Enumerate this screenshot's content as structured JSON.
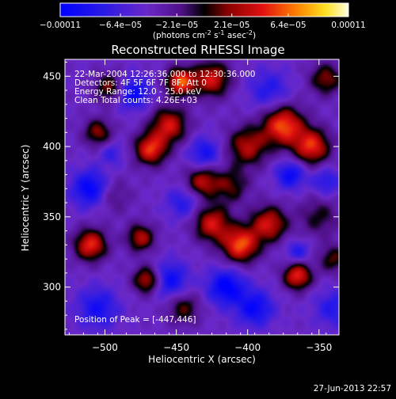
{
  "chart_data": {
    "type": "heatmap",
    "title": "Reconstructed RHESSI Image",
    "xlabel": "Heliocentric X (arcsec)",
    "ylabel": "Heliocentric Y (arcsec)",
    "xlim": [
      -528,
      -336
    ],
    "ylim": [
      266,
      462
    ],
    "x_ticks": [
      -500,
      -450,
      -400,
      -350
    ],
    "y_ticks": [
      300,
      350,
      400,
      450
    ],
    "colorbar": {
      "min": -0.00011,
      "max": 0.00011,
      "tick_values": [
        -0.00011,
        -6.4e-05,
        -2.1e-05,
        2.1e-05,
        6.4e-05,
        0.00011
      ],
      "tick_labels": [
        "-0.00011",
        "-6.4e-05",
        "-2.1e-05",
        "2.1e-05",
        "6.4e-05",
        "0.00011"
      ],
      "unit_label": "(photons cm",
      "unit_exp1": "-2",
      "unit_mid": " s",
      "unit_exp2": "-1",
      "unit_mid2": " asec",
      "unit_exp3": "-2",
      "unit_end": ")"
    },
    "annotations": [
      "22-Mar-2004 12:26:36.000 to 12:30:36.000",
      "Detectors: 4F 5F 6F 7F 8F, Att 0",
      "Energy Range: 12.0 - 25.0 keV",
      "Clean     Total counts: 4.26E+03"
    ],
    "peak_label": "Position of Peak = [-447,446]",
    "peak": [
      -447,
      446
    ],
    "blobs": [
      [
        -447,
        446,
        0.0001,
        7
      ],
      [
        -497,
        442,
        6e-05,
        7
      ],
      [
        -425,
        448,
        8e-05,
        9
      ],
      [
        -345,
        448,
        6e-05,
        8
      ],
      [
        -375,
        415,
        0.0001,
        10
      ],
      [
        -355,
        400,
        9e-05,
        9
      ],
      [
        -400,
        400,
        7e-05,
        10
      ],
      [
        -455,
        415,
        8e-05,
        9
      ],
      [
        -468,
        398,
        9e-05,
        8
      ],
      [
        -505,
        410,
        6e-05,
        7
      ],
      [
        -432,
        375,
        7e-05,
        8
      ],
      [
        -412,
        372,
        5e-05,
        9
      ],
      [
        -425,
        345,
        8e-05,
        9
      ],
      [
        -405,
        330,
        0.0001,
        9
      ],
      [
        -385,
        345,
        8e-05,
        9
      ],
      [
        -350,
        350,
        4e-05,
        10
      ],
      [
        -475,
        335,
        7e-05,
        7
      ],
      [
        -510,
        330,
        9e-05,
        8
      ],
      [
        -470,
        305,
        8e-05,
        7
      ],
      [
        -365,
        308,
        9e-05,
        7
      ],
      [
        -445,
        285,
        5e-05,
        8
      ],
      [
        -495,
        365,
        3e-05,
        9
      ],
      [
        -340,
        320,
        5e-05,
        7
      ],
      [
        -480,
        438,
        -6e-05,
        8
      ],
      [
        -385,
        440,
        -4e-05,
        10
      ],
      [
        -430,
        395,
        -5e-05,
        8
      ],
      [
        -510,
        370,
        -7e-05,
        9
      ],
      [
        -445,
        360,
        -4e-05,
        8
      ],
      [
        -370,
        380,
        -6e-05,
        7
      ],
      [
        -455,
        305,
        -6e-05,
        9
      ],
      [
        -415,
        300,
        -7e-05,
        9
      ],
      [
        -395,
        285,
        -6e-05,
        9
      ],
      [
        -505,
        285,
        -5e-05,
        10
      ],
      [
        -340,
        285,
        -4e-05,
        9
      ],
      [
        -345,
        375,
        -4e-05,
        7
      ],
      [
        -365,
        325,
        -4e-05,
        6
      ],
      [
        -495,
        395,
        -3e-05,
        6
      ]
    ]
  },
  "footer": {
    "timestamp": "27-Jun-2013 22:57"
  }
}
